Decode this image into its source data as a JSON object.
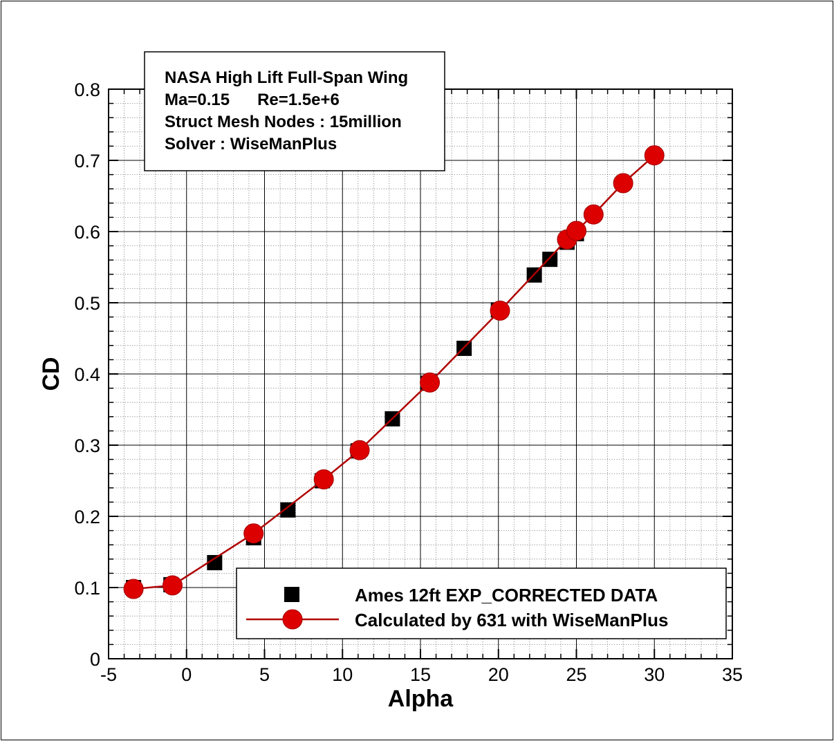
{
  "chart_data": {
    "type": "scatter",
    "title": "",
    "xlabel": "Alpha",
    "ylabel": "CD",
    "xlim": [
      -5,
      35
    ],
    "ylim": [
      0,
      0.8
    ],
    "x_ticks": [
      "-5",
      "0",
      "5",
      "10",
      "15",
      "20",
      "25",
      "30",
      "35"
    ],
    "y_ticks": [
      "0",
      "0.1",
      "0.2",
      "0.3",
      "0.4",
      "0.5",
      "0.6",
      "0.7",
      "0.8"
    ],
    "grid": true,
    "legend_position": "bottom-right",
    "info_box": [
      "NASA High Lift Full-Span Wing",
      "Ma=0.15      Re=1.5e+6",
      "Struct Mesh Nodes : 15million",
      "Solver : WiseManPlus"
    ],
    "series": [
      {
        "name": "Ames 12ft EXP_CORRECTED DATA",
        "marker": "square",
        "line": false,
        "color": "#000000",
        "x": [
          -3.4,
          -1.0,
          1.8,
          4.3,
          6.5,
          8.7,
          11.0,
          13.2,
          15.5,
          17.8,
          20.0,
          22.3,
          23.3,
          24.4,
          25.0
        ],
        "y": [
          0.1,
          0.104,
          0.135,
          0.17,
          0.209,
          0.25,
          0.292,
          0.337,
          0.387,
          0.436,
          0.49,
          0.539,
          0.561,
          0.585,
          0.597
        ]
      },
      {
        "name": "Calculated by 631 with WiseManPlus",
        "marker": "circle",
        "line": true,
        "color": "#dd0000",
        "line_color": "#b00000",
        "x": [
          -3.4,
          -0.9,
          4.3,
          8.8,
          11.1,
          15.6,
          20.1,
          24.4,
          25.0,
          26.1,
          28.0,
          30.0
        ],
        "y": [
          0.098,
          0.103,
          0.176,
          0.252,
          0.293,
          0.388,
          0.489,
          0.589,
          0.601,
          0.624,
          0.668,
          0.707
        ]
      }
    ]
  }
}
